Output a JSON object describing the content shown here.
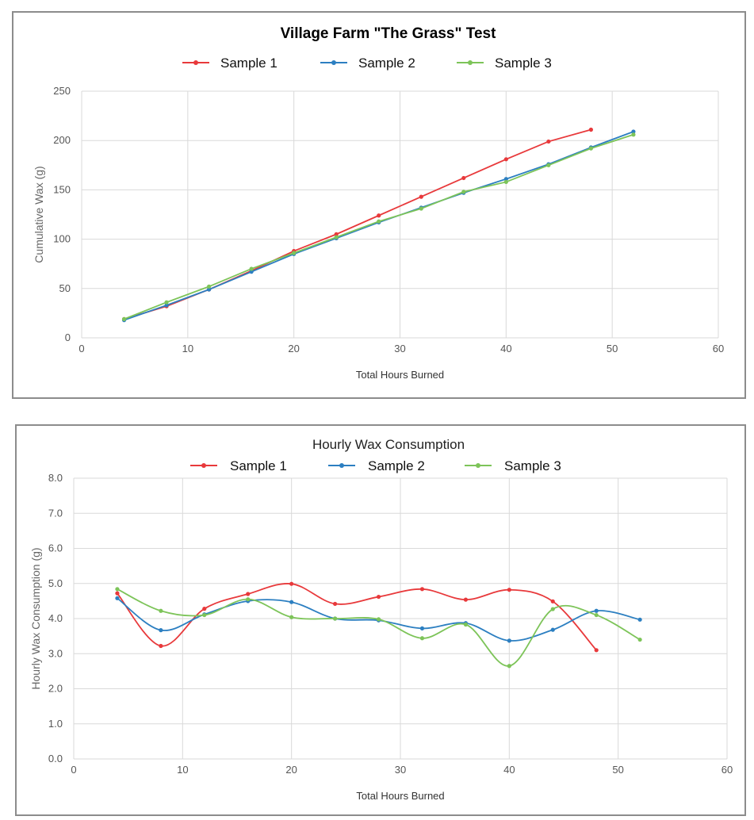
{
  "chart_data": [
    {
      "type": "line",
      "title": "Village Farm \"The Grass\" Test",
      "xlabel": "Total Hours Burned",
      "ylabel": "Cumulative Wax (g)",
      "xlim": [
        0,
        60
      ],
      "ylim": [
        0,
        250
      ],
      "xticks": [
        0,
        10,
        20,
        30,
        40,
        50,
        60
      ],
      "yticks": [
        0,
        50,
        100,
        150,
        200,
        250
      ],
      "ytick_labels": [
        "0",
        "50",
        "100",
        "150",
        "200",
        "250"
      ],
      "grid": true,
      "legend": "top",
      "series": [
        {
          "name": "Sample 1",
          "color": "#e8393b",
          "x": [
            4,
            8,
            12,
            16,
            20,
            24,
            28,
            32,
            36,
            40,
            44,
            48
          ],
          "y": [
            19,
            32,
            49,
            68,
            88,
            105,
            124,
            143,
            162,
            181,
            199,
            211
          ]
        },
        {
          "name": "Sample 2",
          "color": "#2c7fc1",
          "x": [
            4,
            8,
            12,
            16,
            20,
            24,
            28,
            32,
            36,
            40,
            44,
            48,
            52
          ],
          "y": [
            18,
            33,
            49,
            67,
            85,
            101,
            117,
            132,
            147,
            161,
            176,
            193,
            209
          ]
        },
        {
          "name": "Sample 3",
          "color": "#7dc459",
          "x": [
            4,
            8,
            12,
            16,
            20,
            24,
            28,
            32,
            36,
            40,
            44,
            48,
            52
          ],
          "y": [
            19,
            36,
            52,
            70,
            86,
            102,
            118,
            131,
            148,
            158,
            175,
            192,
            206
          ]
        }
      ]
    },
    {
      "type": "line",
      "title": "Hourly Wax Consumption",
      "xlabel": "Total Hours Burned",
      "ylabel": "Hourly Wax Consumption (g)",
      "xlim": [
        0,
        60
      ],
      "ylim": [
        0,
        8
      ],
      "xticks": [
        0,
        10,
        20,
        30,
        40,
        50,
        60
      ],
      "yticks": [
        0,
        1,
        2,
        3,
        4,
        5,
        6,
        7,
        8
      ],
      "ytick_labels": [
        "0.0",
        "1.0",
        "2.0",
        "3.0",
        "4.0",
        "5.0",
        "6.0",
        "7.0",
        "8.0"
      ],
      "grid": true,
      "legend": "top",
      "smooth": true,
      "series": [
        {
          "name": "Sample 1",
          "color": "#e8393b",
          "x": [
            4,
            8,
            12,
            16,
            20,
            24,
            28,
            32,
            36,
            40,
            44,
            48
          ],
          "y": [
            4.72,
            3.22,
            4.28,
            4.7,
            4.99,
            4.42,
            4.62,
            4.84,
            4.54,
            4.82,
            4.49,
            3.1
          ]
        },
        {
          "name": "Sample 2",
          "color": "#2c7fc1",
          "x": [
            4,
            8,
            12,
            16,
            20,
            24,
            28,
            32,
            36,
            40,
            44,
            48,
            52
          ],
          "y": [
            4.58,
            3.67,
            4.12,
            4.5,
            4.47,
            4.0,
            3.95,
            3.72,
            3.87,
            3.37,
            3.68,
            4.22,
            3.97
          ]
        },
        {
          "name": "Sample 3",
          "color": "#7dc459",
          "x": [
            4,
            8,
            12,
            16,
            20,
            24,
            28,
            32,
            36,
            40,
            44,
            48,
            52
          ],
          "y": [
            4.84,
            4.22,
            4.1,
            4.55,
            4.04,
            4.0,
            3.98,
            3.44,
            3.83,
            2.65,
            4.27,
            4.1,
            3.4
          ]
        }
      ]
    }
  ]
}
